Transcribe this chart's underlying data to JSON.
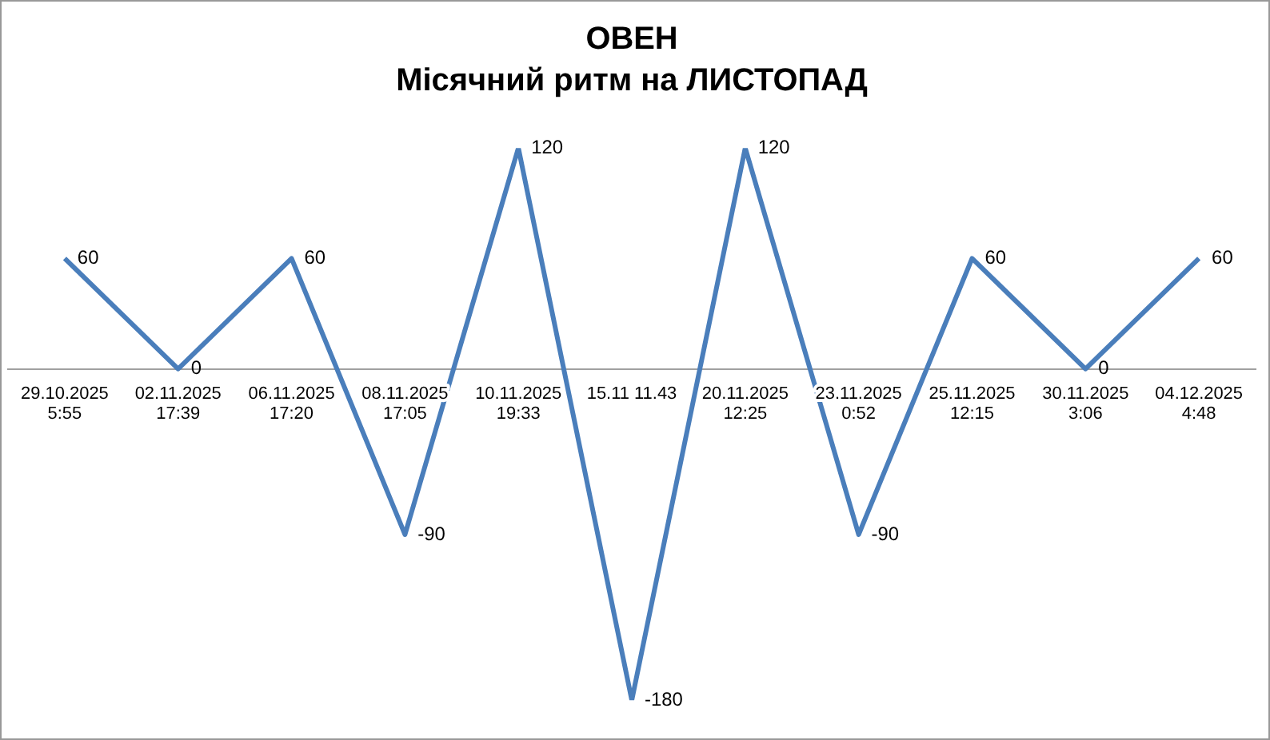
{
  "chart_data": {
    "type": "line",
    "title": "ОВЕН",
    "subtitle": "Місячний ритм на ЛИСТОПАД",
    "categories": [
      "29.10.2025\n5:55",
      "02.11.2025\n17:39",
      "06.11.2025\n17:20",
      "08.11.2025\n17:05",
      "10.11.2025\n19:33",
      "15.11 11.43",
      "20.11.2025\n12:25",
      "23.11.2025\n0:52",
      "25.11.2025\n12:15",
      "30.11.2025\n3:06",
      "04.12.2025\n4:48"
    ],
    "series": [
      {
        "color": "#4a7ebb",
        "values": [
          60,
          0,
          60,
          -90,
          120,
          -180,
          120,
          -90,
          60,
          0,
          60
        ]
      }
    ],
    "data_labels": true,
    "grid": false,
    "legend": false,
    "marker": "none",
    "line_style": "solid",
    "tick_labels": "x"
  }
}
